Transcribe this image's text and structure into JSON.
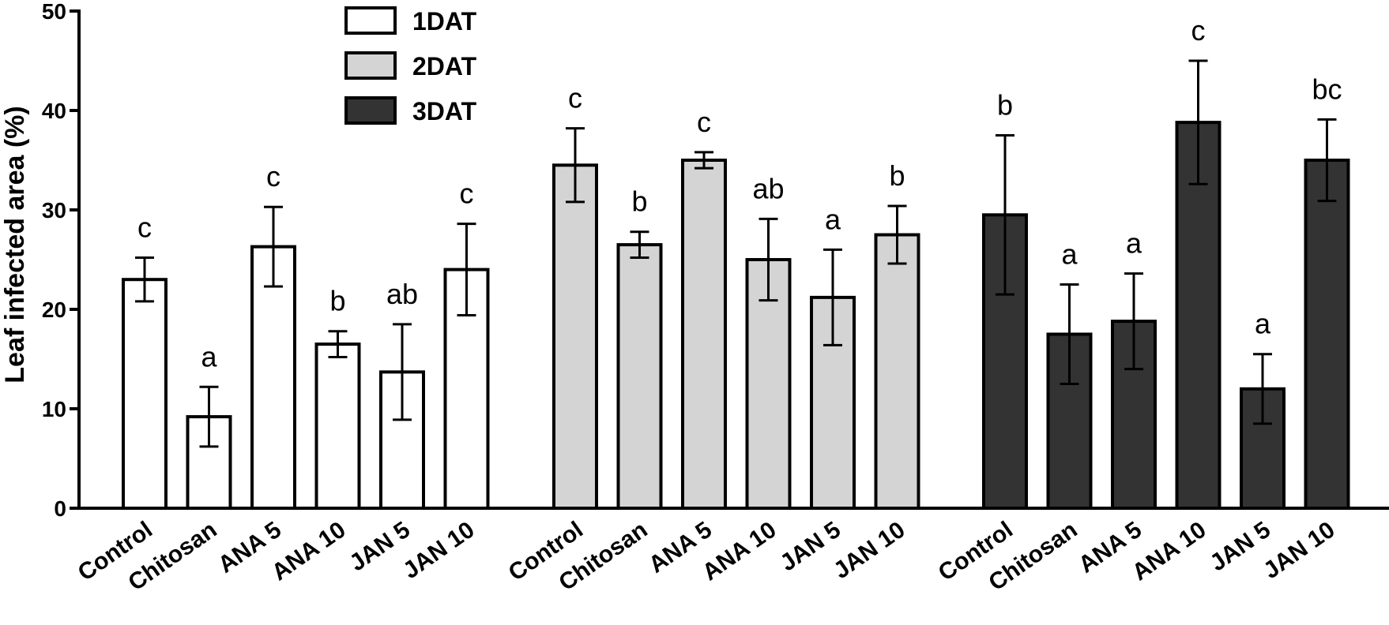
{
  "chart_data": {
    "type": "bar",
    "title": "",
    "xlabel": "",
    "ylabel": "Leaf infected area (%)",
    "ylim": [
      0,
      50
    ],
    "yticks": [
      "0",
      "10",
      "20",
      "30",
      "40",
      "50"
    ],
    "grid": false,
    "legend_position": "top-left",
    "categories": [
      "Control",
      "Chitosan",
      "ANA 5",
      "ANA 10",
      "JAN 5",
      "JAN 10"
    ],
    "series": [
      {
        "name": "1DAT",
        "color": "#ffffff",
        "values": [
          23.0,
          9.2,
          26.3,
          16.5,
          13.7,
          24.0
        ],
        "errors": [
          2.2,
          3.0,
          4.0,
          1.3,
          4.8,
          4.6
        ],
        "letters": [
          "c",
          "a",
          "c",
          "b",
          "ab",
          "c"
        ]
      },
      {
        "name": "2DAT",
        "color": "#d4d4d4",
        "values": [
          34.5,
          26.5,
          35.0,
          25.0,
          21.2,
          27.5
        ],
        "errors": [
          3.7,
          1.3,
          0.8,
          4.1,
          4.8,
          2.9
        ],
        "letters": [
          "c",
          "b",
          "c",
          "ab",
          "a",
          "b"
        ]
      },
      {
        "name": "3DAT",
        "color": "#333333",
        "values": [
          29.5,
          17.5,
          18.8,
          38.8,
          12.0,
          35.0
        ],
        "errors": [
          8.0,
          5.0,
          4.8,
          6.2,
          3.5,
          4.1
        ],
        "letters": [
          "b",
          "a",
          "a",
          "c",
          "a",
          "bc"
        ]
      }
    ]
  }
}
